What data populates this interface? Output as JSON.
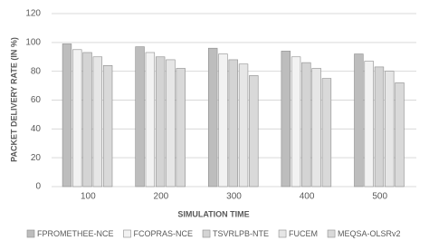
{
  "chart_data": {
    "type": "bar",
    "x_label": "SIMULATION TIME",
    "y_label": "PACKET DELIVERY RATE (IN %)",
    "categories": [
      "100",
      "200",
      "300",
      "400",
      "500"
    ],
    "series": [
      {
        "name": "FPROMETHEE-NCE",
        "color": "#bdbdbd",
        "values": [
          99,
          97,
          96,
          94,
          92
        ]
      },
      {
        "name": "FCOPRAS-NCE",
        "color": "#f2f2f2",
        "values": [
          95,
          93,
          92,
          90,
          87
        ]
      },
      {
        "name": "TSVRLPB-NTE",
        "color": "#d4d4d4",
        "values": [
          93,
          90,
          88,
          86,
          83
        ]
      },
      {
        "name": "FUCEM",
        "color": "#e6e6e6",
        "values": [
          90,
          88,
          85,
          82,
          80
        ]
      },
      {
        "name": "MEQSA-OLSRv2",
        "color": "#d9d9d9",
        "values": [
          84,
          82,
          77,
          75,
          72
        ]
      }
    ],
    "ylim": [
      0,
      120
    ],
    "yticks": [
      0,
      20,
      40,
      60,
      80,
      100,
      120
    ],
    "grid": true,
    "legend": "bottom"
  }
}
